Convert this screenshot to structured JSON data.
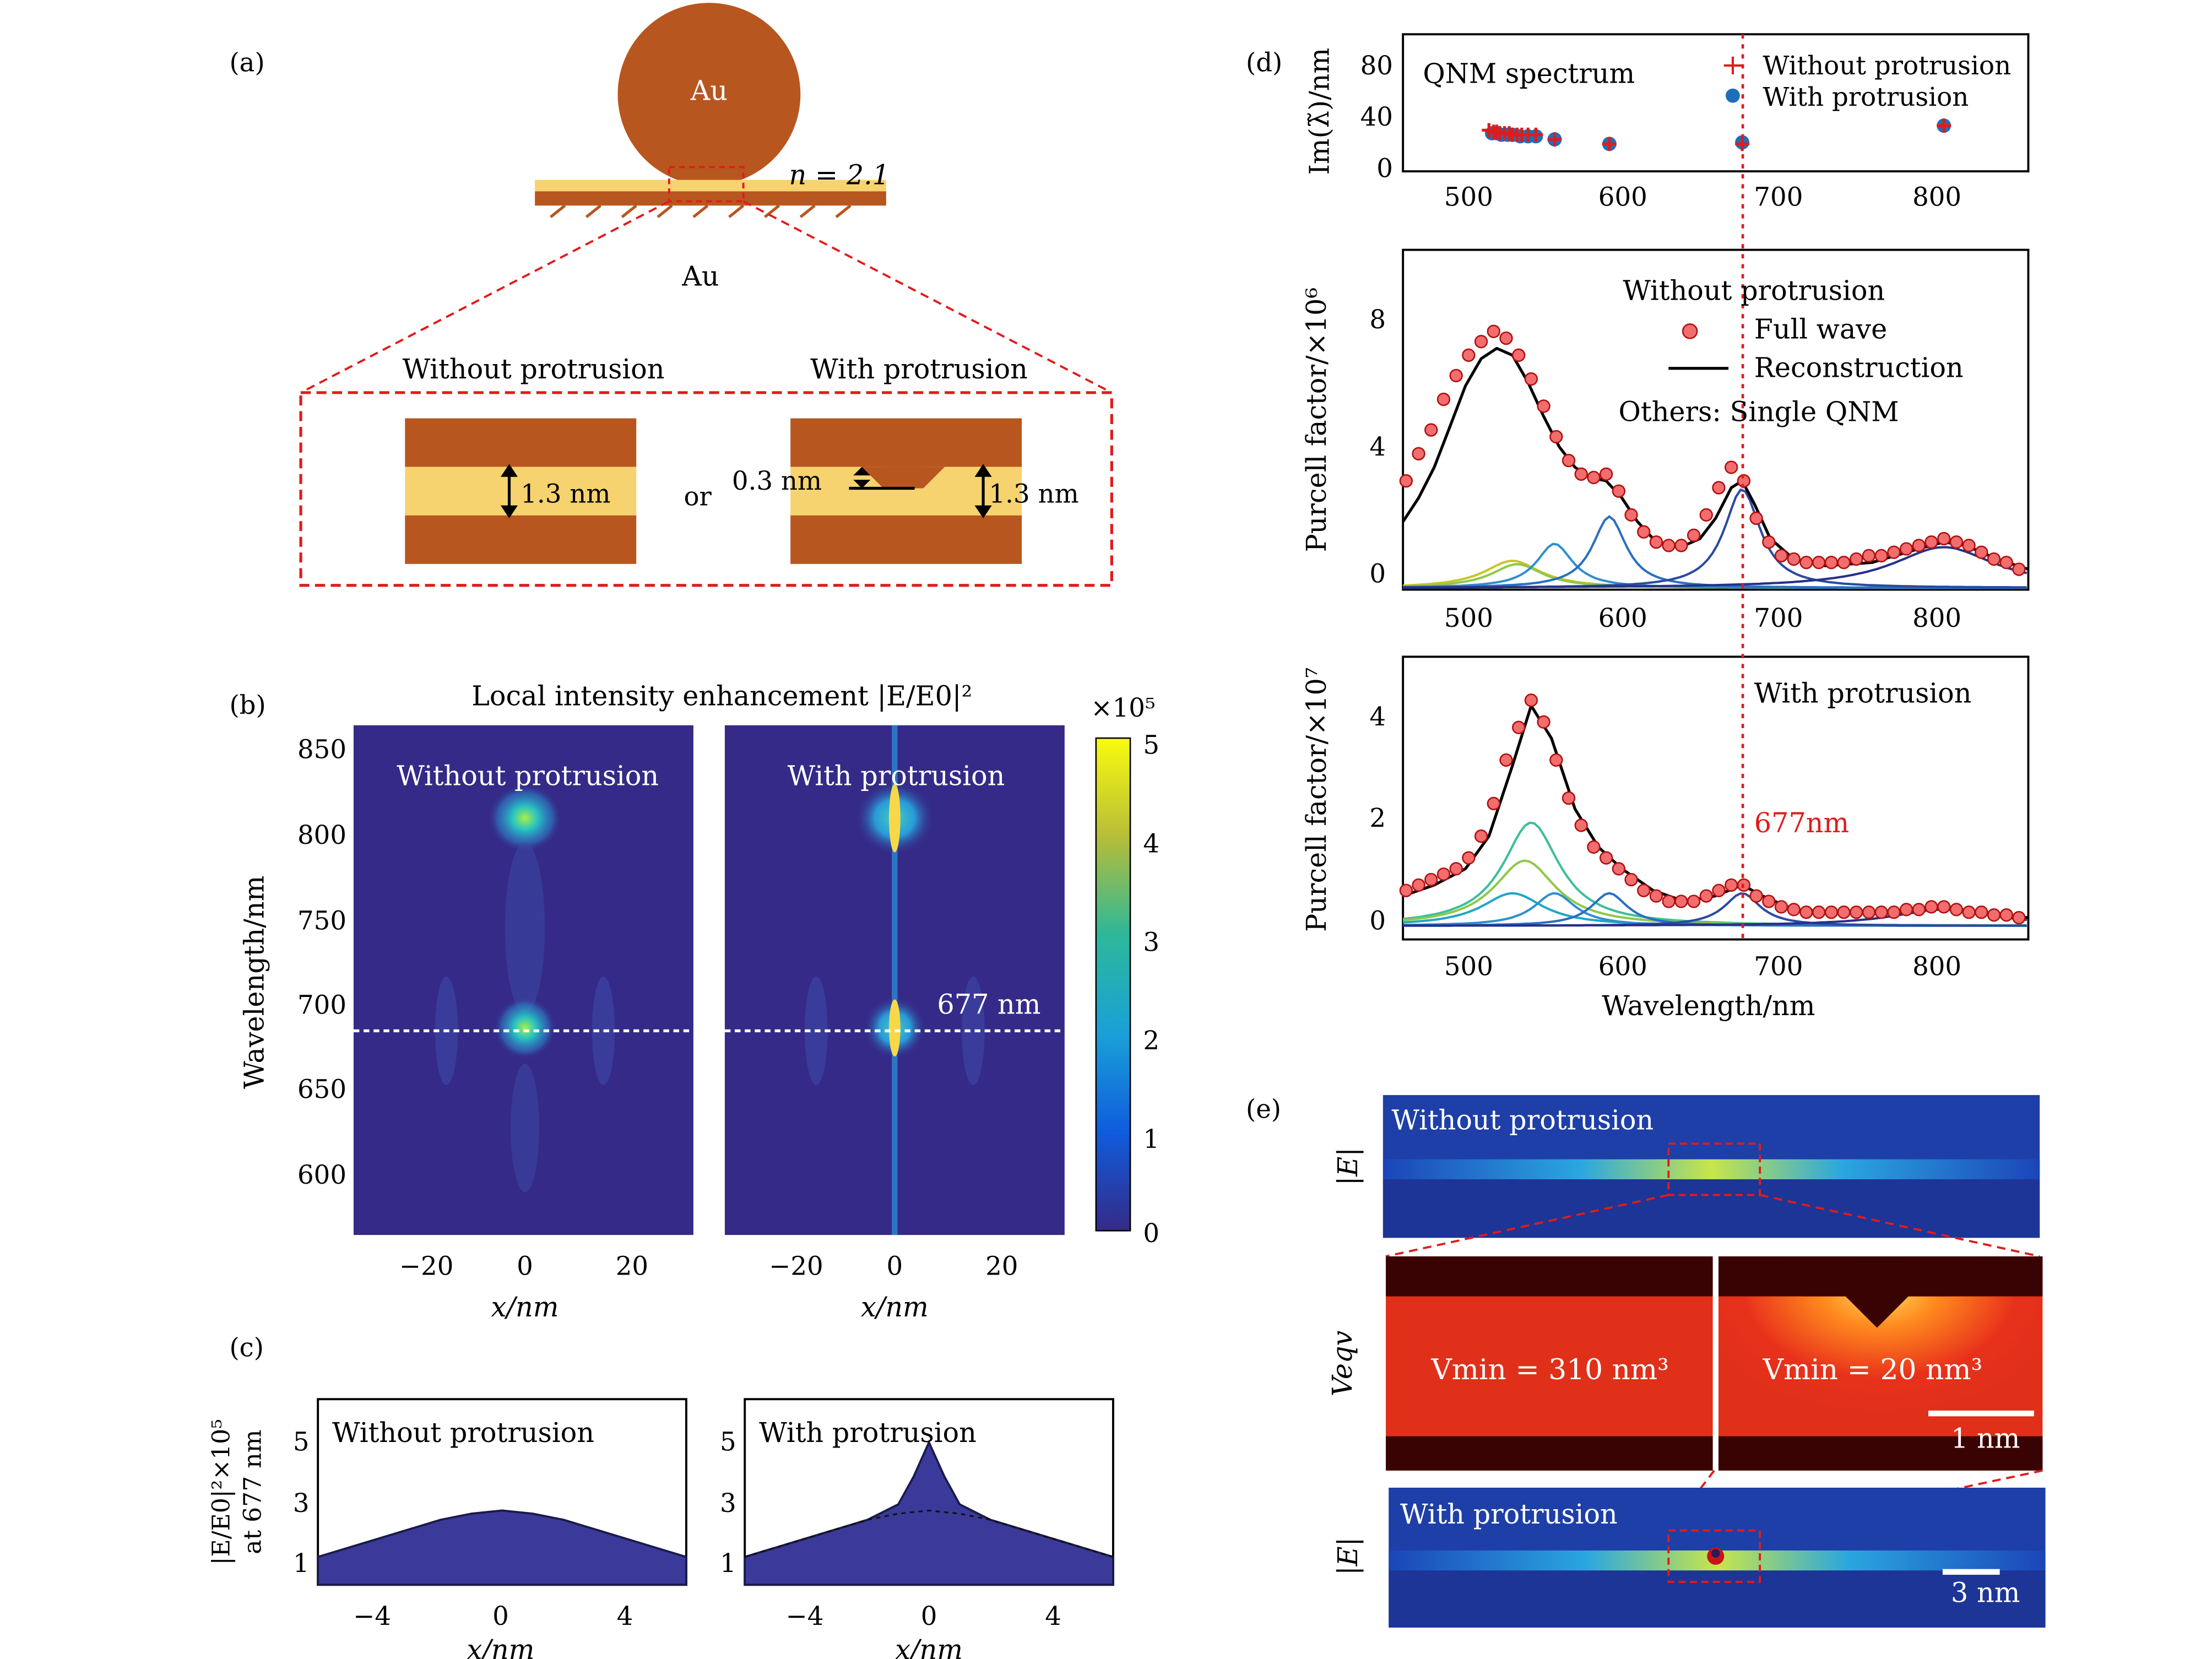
{
  "panels": {
    "a": {
      "label": "(a)",
      "sphere": "Au",
      "substrate": "Au",
      "index": "n = 2.1",
      "without": "Without protrusion",
      "with": "With protrusion",
      "gap": "1.3 nm",
      "or": "or",
      "protrusion": "0.3 nm",
      "gap2": "1.3 nm"
    },
    "b": {
      "label": "(b)",
      "title": "Local intensity enhancement |E/E0|²",
      "without": "Without protrusion",
      "with": "With protrusion",
      "ylabel": "Wavelength/nm",
      "xlabel": "x/nm",
      "marker": "677 nm",
      "cbar_exp": "×10⁵",
      "cbar_ticks": [
        "5",
        "4",
        "3",
        "2",
        "1",
        "0"
      ],
      "yticks": [
        "850",
        "800",
        "750",
        "700",
        "650",
        "600"
      ],
      "xticks": [
        "−20",
        "0",
        "20"
      ]
    },
    "c": {
      "label": "(c)",
      "without": "Without protrusion",
      "with": "With protrusion",
      "ylabel1": "|E/E0|²×10⁵",
      "ylabel2": "at 677 nm",
      "xlabel": "x/nm",
      "yticks": [
        "5",
        "3",
        "1"
      ],
      "xticks": [
        "−4",
        "0",
        "4"
      ]
    },
    "d": {
      "label": "(d)",
      "top_title": "QNM spectrum",
      "top_ylabel": "Im(λ̃)/nm",
      "legend_plus": "Without protrusion",
      "legend_dot": "With protrusion",
      "top_yticks": [
        "80",
        "40",
        "0"
      ],
      "xticks": [
        "500",
        "600",
        "700",
        "800"
      ],
      "mid_ylabel": "Purcell factor/×10⁶",
      "mid_title": "Without protrusion",
      "mid_leg1": "Full wave",
      "mid_leg2": "Reconstruction",
      "mid_leg3": "Others: Single QNM",
      "mid_yticks": [
        "8",
        "4",
        "0"
      ],
      "bot_ylabel": "Purcell factor/×10⁷",
      "bot_title": "With protrusion",
      "bot_marker": "677nm",
      "bot_yticks": [
        "4",
        "2",
        "0"
      ],
      "xlabel": "Wavelength/nm"
    },
    "e": {
      "label": "(e)",
      "row1_label": "|E|",
      "row1_title": "Without protrusion",
      "row2_label": "Veqv",
      "vmin_left": "Vmin = 310 nm³",
      "vmin_right": "Vmin = 20 nm³",
      "scale1": "1 nm",
      "row3_label": "|E|",
      "row3_title": "With protrusion",
      "scale2": "3 nm"
    }
  },
  "colors": {
    "gold_dark": "#b8561f",
    "gold_light": "#f6d36e",
    "map_bg": "#352a87",
    "red": "#e11b1b",
    "blue_dot": "#1f6fb8",
    "curve_fill": "#3b3a9a"
  },
  "chart_data": [
    {
      "type": "scatter",
      "panel": "d-top",
      "title": "QNM spectrum",
      "ylabel": "Im(λ̃)/nm",
      "xlim": [
        460,
        860
      ],
      "ylim": [
        0,
        90
      ],
      "series": [
        {
          "name": "Without protrusion",
          "marker": "+",
          "x": [
            515,
            518,
            520,
            522,
            525,
            528,
            530,
            533,
            536,
            540,
            545,
            557,
            592,
            677,
            806
          ],
          "y": [
            27,
            26,
            26,
            25,
            25,
            25,
            24,
            24,
            24,
            24,
            24,
            21,
            18,
            18,
            30
          ]
        },
        {
          "name": "With protrusion",
          "marker": "o",
          "x": [
            517,
            520,
            523,
            527,
            530,
            535,
            540,
            545,
            557,
            592,
            677,
            806
          ],
          "y": [
            25,
            25,
            24,
            24,
            24,
            23,
            23,
            23,
            21,
            18,
            19,
            30
          ]
        }
      ]
    },
    {
      "type": "line",
      "panel": "d-middle",
      "title": "Without protrusion",
      "ylabel": "Purcell factor/×10⁶",
      "xlabel": "",
      "xlim": [
        460,
        860
      ],
      "ylim": [
        0,
        10
      ],
      "series": [
        {
          "name": "Full wave",
          "marker": "o",
          "x": [
            462,
            470,
            478,
            486,
            494,
            502,
            510,
            518,
            526,
            534,
            542,
            550,
            558,
            566,
            574,
            582,
            590,
            598,
            606,
            614,
            622,
            630,
            638,
            646,
            654,
            662,
            670,
            678,
            686,
            694,
            702,
            710,
            718,
            726,
            734,
            742,
            750,
            758,
            766,
            774,
            782,
            790,
            798,
            806,
            814,
            822,
            830,
            838,
            846,
            854
          ],
          "y": [
            3.2,
            4.0,
            4.7,
            5.6,
            6.3,
            6.9,
            7.3,
            7.6,
            7.4,
            6.9,
            6.2,
            5.4,
            4.5,
            3.8,
            3.4,
            3.3,
            3.4,
            2.9,
            2.2,
            1.7,
            1.4,
            1.3,
            1.3,
            1.6,
            2.2,
            3.0,
            3.6,
            3.2,
            2.1,
            1.4,
            1.0,
            0.9,
            0.8,
            0.8,
            0.8,
            0.8,
            0.9,
            1.0,
            1.0,
            1.1,
            1.2,
            1.3,
            1.4,
            1.5,
            1.4,
            1.3,
            1.1,
            0.9,
            0.8,
            0.6
          ]
        },
        {
          "name": "Reconstruction",
          "x": [
            460,
            470,
            480,
            490,
            500,
            510,
            520,
            530,
            540,
            550,
            560,
            570,
            580,
            590,
            600,
            610,
            620,
            630,
            640,
            650,
            660,
            670,
            677,
            685,
            695,
            710,
            730,
            760,
            790,
            806,
            820,
            840,
            860
          ],
          "y": [
            2.0,
            2.7,
            3.6,
            4.8,
            6.0,
            6.8,
            7.1,
            6.9,
            6.1,
            5.1,
            4.2,
            3.6,
            3.3,
            3.2,
            2.7,
            2.0,
            1.5,
            1.3,
            1.3,
            1.5,
            2.1,
            3.0,
            3.2,
            2.5,
            1.5,
            0.9,
            0.7,
            0.8,
            1.2,
            1.4,
            1.3,
            0.9,
            0.6
          ]
        }
      ]
    },
    {
      "type": "line",
      "panel": "d-bottom",
      "title": "With protrusion",
      "ylabel": "Purcell factor/×10⁷",
      "xlabel": "Wavelength/nm",
      "xlim": [
        460,
        860
      ],
      "ylim": [
        -0.2,
        5
      ],
      "series": [
        {
          "name": "Full wave",
          "marker": "o",
          "x": [
            462,
            470,
            478,
            486,
            494,
            502,
            510,
            518,
            526,
            534,
            542,
            550,
            558,
            566,
            574,
            582,
            590,
            598,
            606,
            614,
            622,
            630,
            638,
            646,
            654,
            662,
            670,
            678,
            686,
            694,
            702,
            710,
            718,
            726,
            734,
            742,
            750,
            758,
            766,
            774,
            782,
            790,
            798,
            806,
            814,
            822,
            830,
            838,
            846,
            854
          ],
          "y": [
            0.7,
            0.8,
            0.9,
            1.0,
            1.1,
            1.3,
            1.7,
            2.3,
            3.1,
            3.7,
            4.2,
            3.8,
            3.1,
            2.4,
            1.9,
            1.5,
            1.3,
            1.1,
            0.9,
            0.7,
            0.6,
            0.5,
            0.5,
            0.5,
            0.6,
            0.7,
            0.8,
            0.8,
            0.6,
            0.5,
            0.4,
            0.35,
            0.3,
            0.3,
            0.3,
            0.3,
            0.3,
            0.3,
            0.3,
            0.3,
            0.35,
            0.35,
            0.4,
            0.4,
            0.35,
            0.3,
            0.3,
            0.25,
            0.25,
            0.2
          ]
        },
        {
          "name": "Reconstruction",
          "x": [
            460,
            480,
            500,
            515,
            530,
            542,
            555,
            570,
            585,
            600,
            620,
            640,
            660,
            677,
            690,
            710,
            740,
            780,
            806,
            830,
            860
          ],
          "y": [
            0.6,
            0.8,
            1.1,
            1.7,
            3.0,
            4.1,
            3.5,
            2.2,
            1.5,
            1.1,
            0.7,
            0.5,
            0.6,
            0.8,
            0.6,
            0.35,
            0.3,
            0.3,
            0.4,
            0.3,
            0.2
          ]
        }
      ]
    },
    {
      "type": "area",
      "panel": "c-left",
      "title": "Without protrusion",
      "xlabel": "x/nm",
      "ylabel": "|E/E0|²×10⁵ at 677 nm",
      "xlim": [
        -6,
        6
      ],
      "ylim": [
        0,
        6
      ],
      "x": [
        -6,
        -5,
        -4,
        -3,
        -2,
        -1,
        0,
        1,
        2,
        3,
        4,
        5,
        6
      ],
      "values": [
        0.9,
        1.2,
        1.5,
        1.8,
        2.1,
        2.3,
        2.4,
        2.3,
        2.1,
        1.8,
        1.5,
        1.2,
        0.9
      ]
    },
    {
      "type": "area",
      "panel": "c-right",
      "title": "With protrusion",
      "xlabel": "x/nm",
      "xlim": [
        -6,
        6
      ],
      "ylim": [
        0,
        6
      ],
      "x": [
        -6,
        -5,
        -4,
        -3,
        -2,
        -1,
        -0.5,
        0,
        0.5,
        1,
        2,
        3,
        4,
        5,
        6
      ],
      "values": [
        0.9,
        1.2,
        1.5,
        1.8,
        2.1,
        2.6,
        3.5,
        4.6,
        3.5,
        2.6,
        2.1,
        1.8,
        1.5,
        1.2,
        0.9
      ]
    }
  ]
}
